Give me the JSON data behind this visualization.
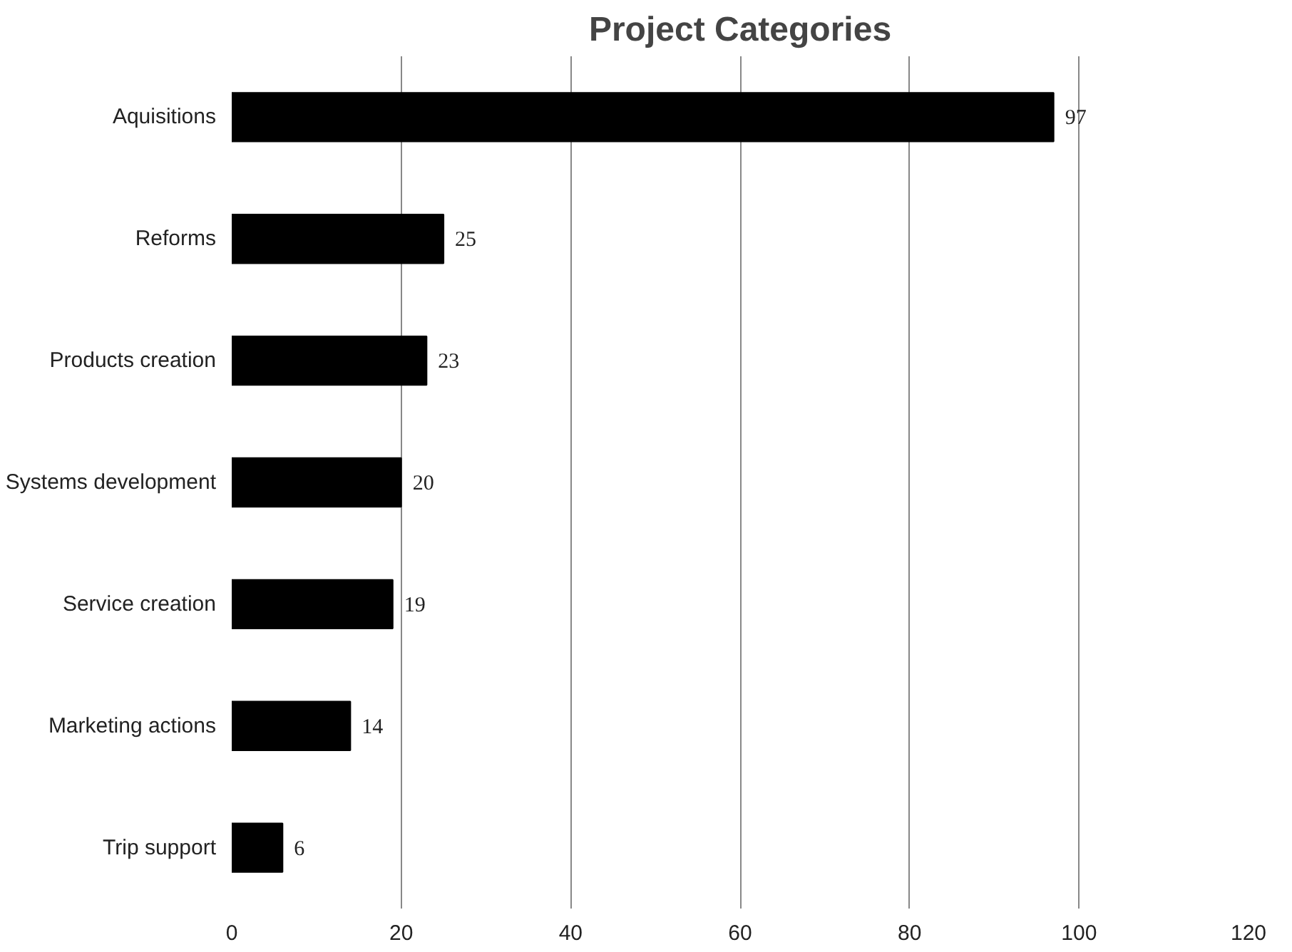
{
  "chart_data": {
    "type": "bar",
    "orientation": "horizontal",
    "title": "Project Categories",
    "categories": [
      "Aquisitions",
      "Reforms",
      "Products creation",
      "Systems development",
      "Service creation",
      "Marketing actions",
      "Trip support"
    ],
    "values": [
      97,
      25,
      23,
      20,
      19,
      14,
      6
    ],
    "color": "#000000",
    "xlim": [
      0,
      120
    ],
    "xticks": [
      0,
      20,
      40,
      60,
      80,
      100,
      120
    ],
    "grid": "x",
    "data_labels": true
  }
}
